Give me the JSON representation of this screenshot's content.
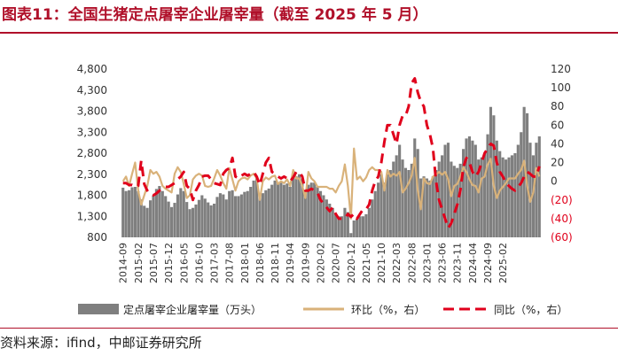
{
  "title": "图表11：全国生猪定点屠宰企业屠宰量（截至 2025 年 5 月）",
  "source": "资料来源：ifind，中邮证券研究所",
  "colors": {
    "bar": "#7f7f7f",
    "mom": "#d9b27a",
    "yoy": "#e0001b",
    "neg_label": "#e0001b",
    "title": "#b0102a"
  },
  "chart_data": {
    "type": "bar",
    "left_axis": {
      "ticks": [
        "4,800",
        "4,300",
        "3,800",
        "3,300",
        "2,800",
        "2,300",
        "1,800",
        "1,300",
        "800"
      ],
      "ylim": [
        800,
        4800
      ]
    },
    "right_axis": {
      "ticks": [
        "120",
        "100",
        "80",
        "60",
        "40",
        "20",
        "0",
        "(20)",
        "(40)",
        "(60)"
      ],
      "ylim": [
        -60,
        120
      ],
      "log": false
    },
    "x_tick_labels": [
      "2014-09",
      "2015-02",
      "2015-07",
      "2015-12",
      "2016-05",
      "2016-10",
      "2017-03",
      "2017-08",
      "2018-01",
      "2018-06",
      "2018-11",
      "2019-04",
      "2019-09",
      "2020-02",
      "2020-07",
      "2020-12",
      "2021-05",
      "2021-10",
      "2022-03",
      "2022-08",
      "2023-01",
      "2023-06",
      "2023-11",
      "2024-04",
      "2024-09",
      "2025-02"
    ],
    "legend": [
      "定点屠宰企业屠宰量（万头）",
      "环比（%，右）",
      "同比（%，右）"
    ],
    "series": [
      {
        "name": "定点屠宰企业屠宰量（万头）",
        "kind": "bar",
        "axis": "left",
        "values": [
          1980,
          1900,
          1920,
          1990,
          2000,
          1900,
          1700,
          1550,
          1500,
          1680,
          1800,
          1950,
          2020,
          1900,
          1780,
          1650,
          1520,
          1620,
          1820,
          1970,
          1900,
          1640,
          1470,
          1500,
          1580,
          1690,
          1800,
          1720,
          1630,
          1560,
          1600,
          1760,
          1850,
          1820,
          1700,
          1900,
          1920,
          1780,
          1780,
          1820,
          1880,
          1900,
          2000,
          2150,
          2200,
          1850,
          1850,
          1920,
          1960,
          2050,
          2150,
          2100,
          2100,
          2050,
          2080,
          2000,
          2200,
          2250,
          2300,
          2200,
          1900,
          2050,
          2100,
          2100,
          2000,
          1900,
          1800,
          1700,
          1600,
          1500,
          1350,
          1300,
          1300,
          1500,
          1400,
          900,
          1200,
          1230,
          1300,
          1300,
          1350,
          1500,
          1700,
          1900,
          2100,
          2300,
          2100,
          2300,
          2400,
          2600,
          2750,
          3000,
          2650,
          2450,
          2400,
          2550,
          3150,
          2900,
          2200,
          2250,
          2200,
          2150,
          2250,
          2400,
          2600,
          2750,
          3000,
          3050,
          2600,
          2500,
          2450,
          2550,
          2900,
          3150,
          3200,
          3100,
          3000,
          2650,
          2700,
          2800,
          3250,
          3900,
          3700,
          3100,
          2850,
          2700,
          2650,
          2700,
          2750,
          2800,
          3000,
          3300,
          3900,
          3750,
          3050,
          2750,
          3050,
          3200
        ]
      },
      {
        "name": "环比（%，右）",
        "kind": "line",
        "axis": "right",
        "values": [
          0,
          5,
          -5,
          8,
          20,
          -10,
          -25,
          -15,
          -5,
          12,
          8,
          10,
          5,
          -5,
          -8,
          -10,
          -12,
          8,
          15,
          10,
          -3,
          -18,
          -15,
          2,
          6,
          8,
          6,
          -5,
          -6,
          -5,
          3,
          12,
          6,
          -2,
          -8,
          14,
          2,
          -10,
          0,
          3,
          4,
          2,
          6,
          8,
          3,
          -20,
          0,
          4,
          2,
          5,
          6,
          -3,
          0,
          -2,
          2,
          -5,
          12,
          3,
          3,
          -5,
          -18,
          10,
          3,
          0,
          -6,
          -6,
          -6,
          -6,
          -8,
          -8,
          -12,
          -5,
          0,
          18,
          -5,
          -40,
          35,
          2,
          5,
          0,
          4,
          12,
          15,
          12,
          12,
          10,
          -10,
          12,
          5,
          8,
          6,
          10,
          -12,
          -8,
          -2,
          6,
          25,
          -10,
          -30,
          3,
          -2,
          -3,
          5,
          7,
          10,
          7,
          10,
          2,
          -16,
          -5,
          -3,
          5,
          15,
          10,
          2,
          -4,
          -5,
          -12,
          3,
          5,
          18,
          24,
          -5,
          -18,
          -10,
          -6,
          -2,
          3,
          3,
          3,
          8,
          12,
          22,
          -5,
          -22,
          -12,
          14,
          5
        ]
      },
      {
        "name": "同比（%，右）",
        "kind": "line",
        "axis": "right",
        "values": [
          -2,
          -2,
          -4,
          -4,
          -6,
          -5,
          22,
          -3,
          -10,
          -14,
          -15,
          -13,
          -10,
          -8,
          -6,
          -6,
          -4,
          -2,
          2,
          5,
          10,
          -5,
          -8,
          -20,
          -10,
          -4,
          5,
          6,
          6,
          2,
          -2,
          -3,
          -4,
          8,
          12,
          14,
          25,
          5,
          3,
          6,
          8,
          6,
          8,
          10,
          5,
          -4,
          8,
          20,
          25,
          10,
          8,
          5,
          3,
          5,
          3,
          0,
          4,
          10,
          10,
          5,
          -10,
          -10,
          -8,
          -10,
          -12,
          -20,
          -24,
          -28,
          -32,
          -28,
          -35,
          -40,
          -40,
          -40,
          -35,
          -38,
          -35,
          -40,
          -35,
          -30,
          -30,
          -25,
          -10,
          0,
          5,
          20,
          42,
          60,
          60,
          50,
          40,
          60,
          70,
          70,
          80,
          105,
          110,
          95,
          85,
          80,
          60,
          50,
          35,
          0,
          -20,
          -30,
          -40,
          -50,
          -45,
          -35,
          -25,
          -10,
          15,
          25,
          20,
          10,
          5,
          10,
          20,
          30,
          35,
          40,
          38,
          20,
          10,
          5,
          -2,
          -5,
          -8,
          -10,
          -6,
          -2,
          5,
          10,
          8,
          5,
          5,
          16
        ]
      }
    ]
  }
}
